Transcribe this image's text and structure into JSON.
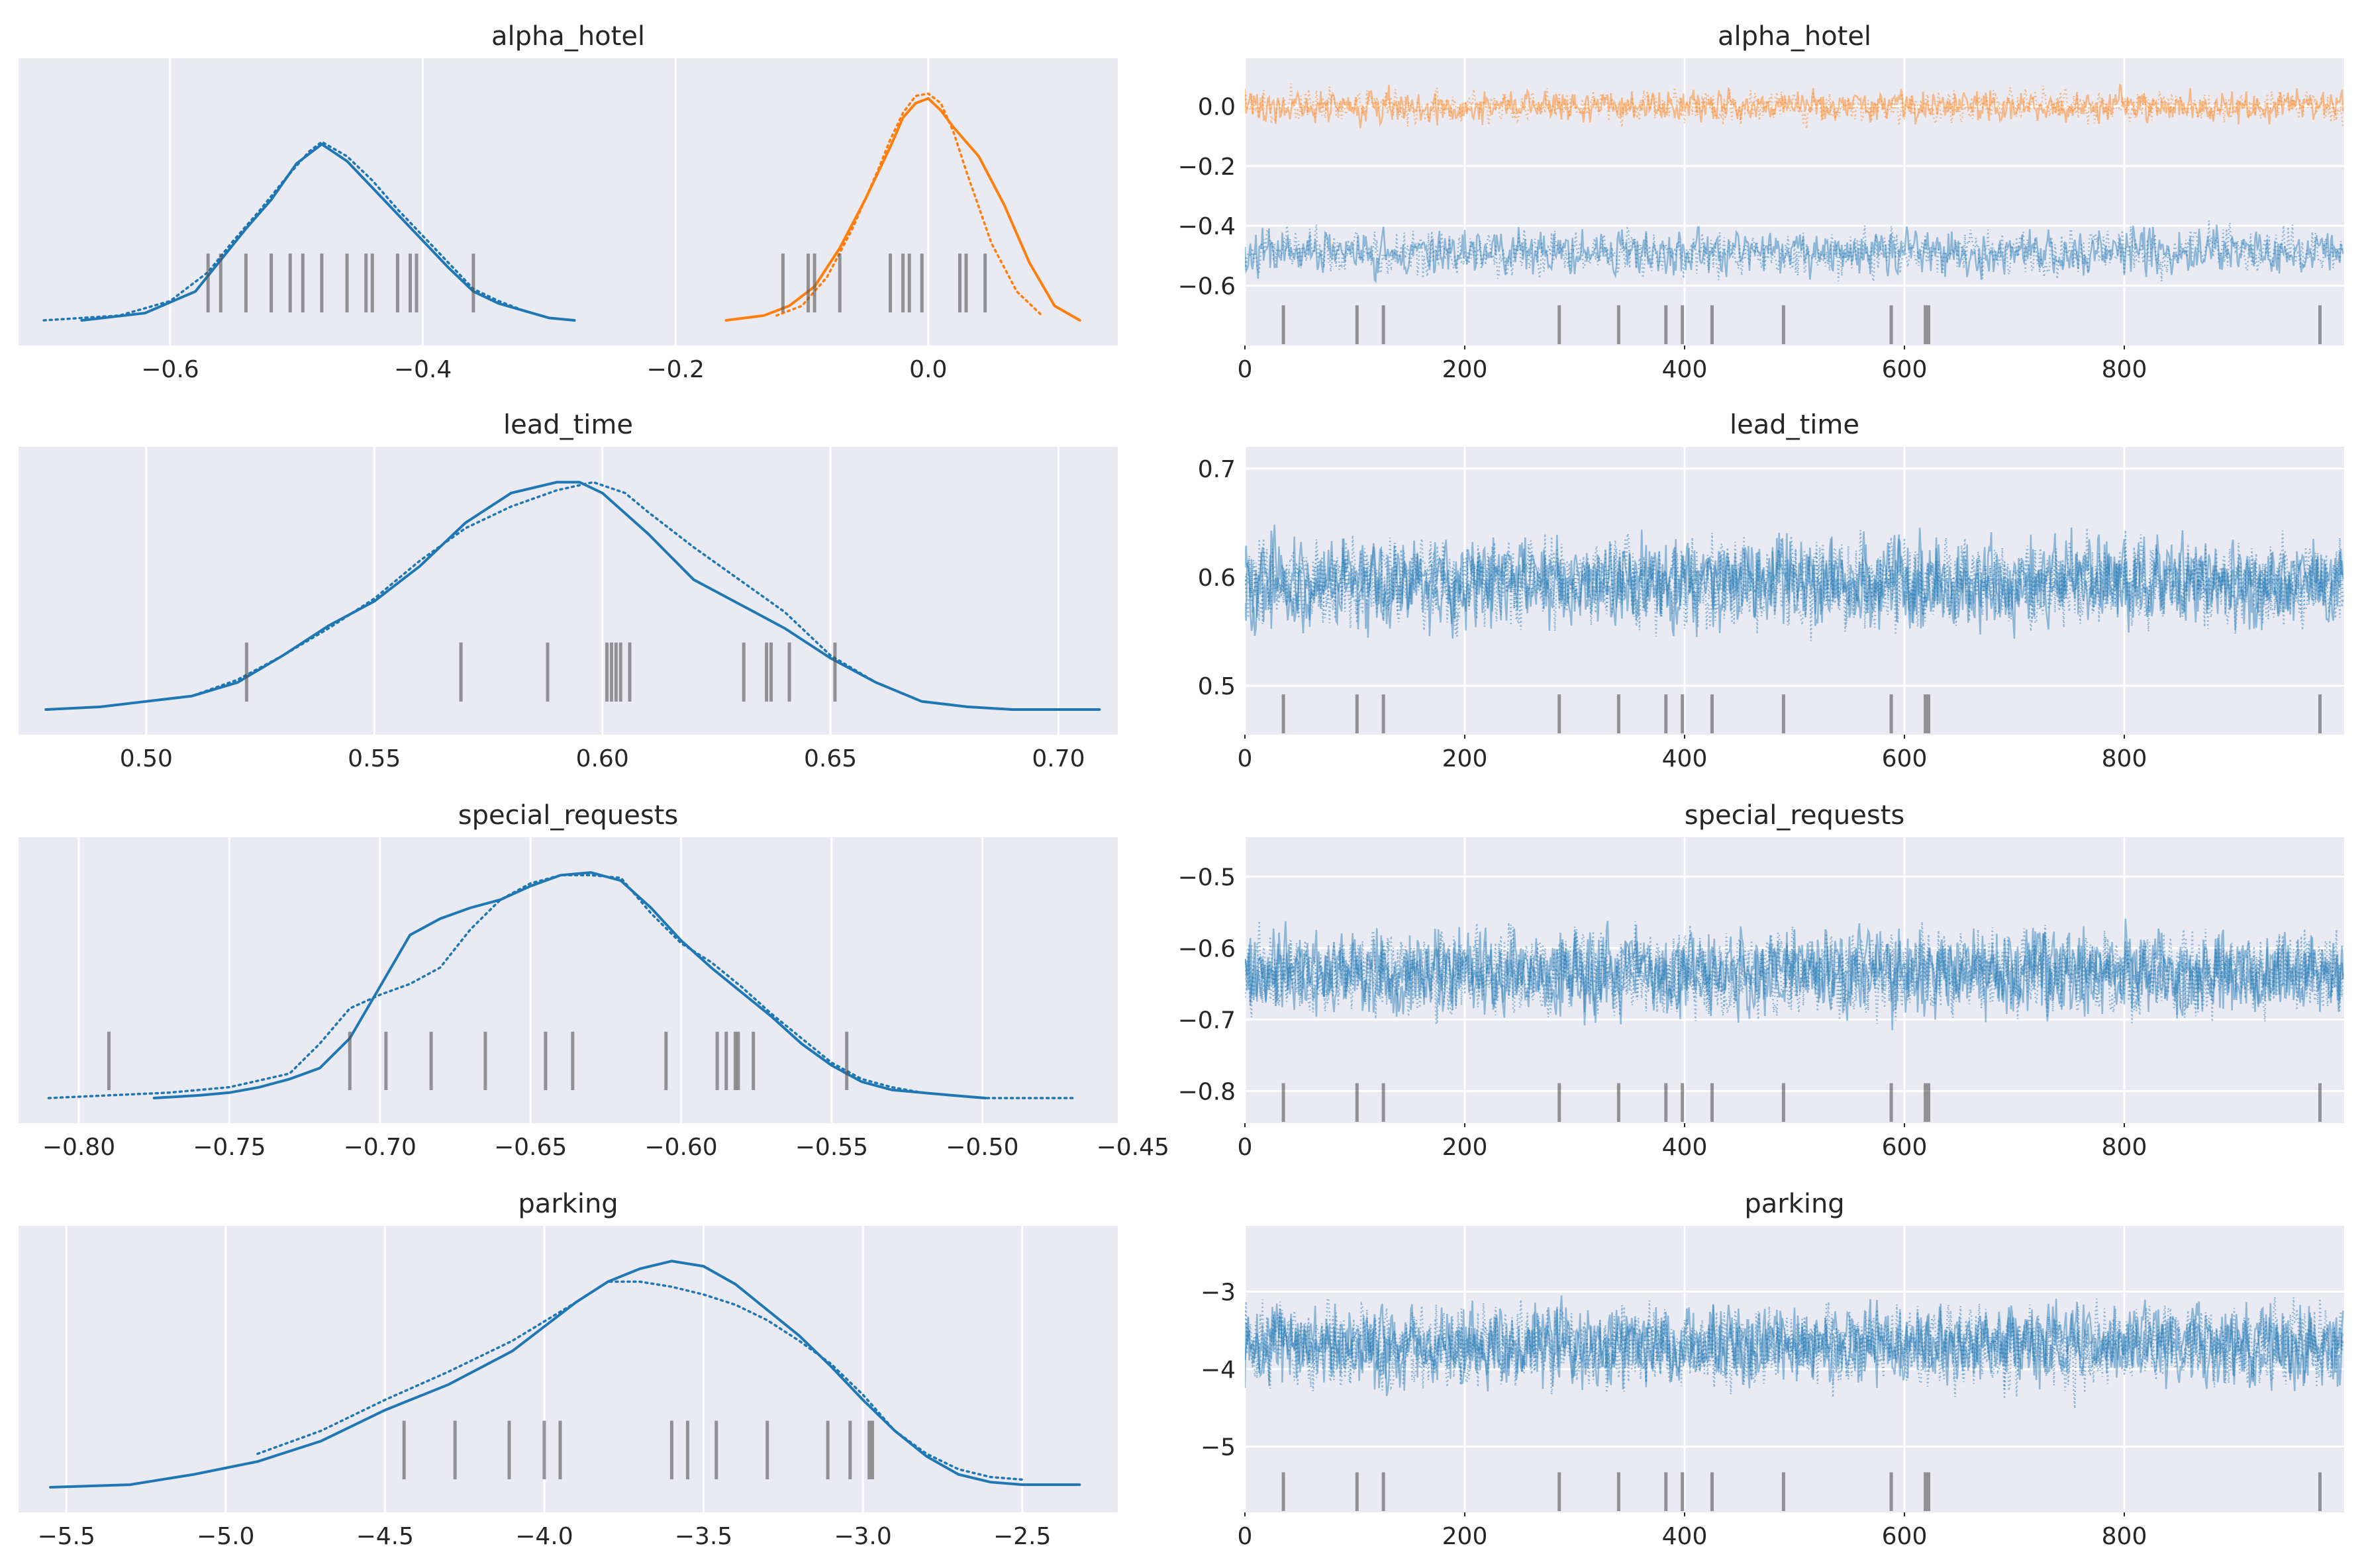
{
  "colors": {
    "chain0": "#1f77b4",
    "chain1": "#ff7f0e",
    "panel_bg": "#eaeaf2",
    "grid": "#ffffff",
    "rug": "#555555"
  },
  "chart_data": [
    {
      "type": "line",
      "title": "alpha_hotel",
      "xlim": [
        -0.72,
        0.15
      ],
      "xticks": [
        -0.6,
        -0.4,
        -0.2,
        0.0
      ],
      "xtick_labels": [
        "−0.6",
        "−0.4",
        "−0.2",
        "0.0"
      ],
      "grid": true,
      "series": [
        {
          "color": "#1f77b4",
          "dash": false,
          "x": [
            -0.67,
            -0.62,
            -0.58,
            -0.56,
            -0.54,
            -0.52,
            -0.5,
            -0.48,
            -0.46,
            -0.44,
            -0.42,
            -0.4,
            -0.38,
            -0.36,
            -0.34,
            -0.32,
            -0.3,
            -0.28
          ],
          "density": [
            0.0,
            0.03,
            0.12,
            0.25,
            0.38,
            0.5,
            0.65,
            0.73,
            0.66,
            0.55,
            0.44,
            0.33,
            0.22,
            0.12,
            0.07,
            0.04,
            0.01,
            0.0
          ]
        },
        {
          "color": "#1f77b4",
          "dash": true,
          "x": [
            -0.7,
            -0.64,
            -0.6,
            -0.57,
            -0.55,
            -0.53,
            -0.51,
            -0.49,
            -0.48,
            -0.46,
            -0.44,
            -0.42,
            -0.4,
            -0.38,
            -0.36,
            -0.34,
            -0.32,
            -0.3
          ],
          "density": [
            0.0,
            0.02,
            0.08,
            0.2,
            0.33,
            0.45,
            0.58,
            0.7,
            0.74,
            0.68,
            0.58,
            0.46,
            0.35,
            0.24,
            0.13,
            0.08,
            0.04,
            0.01
          ]
        },
        {
          "color": "#ff7f0e",
          "dash": false,
          "x": [
            -0.16,
            -0.13,
            -0.11,
            -0.09,
            -0.07,
            -0.05,
            -0.03,
            -0.02,
            -0.01,
            0.0,
            0.01,
            0.02,
            0.04,
            0.06,
            0.08,
            0.1,
            0.12
          ],
          "density": [
            0.0,
            0.02,
            0.06,
            0.14,
            0.3,
            0.5,
            0.72,
            0.84,
            0.9,
            0.92,
            0.87,
            0.8,
            0.68,
            0.48,
            0.24,
            0.06,
            0.0
          ]
        },
        {
          "color": "#ff7f0e",
          "dash": true,
          "x": [
            -0.12,
            -0.1,
            -0.08,
            -0.06,
            -0.04,
            -0.03,
            -0.02,
            -0.01,
            0.0,
            0.01,
            0.02,
            0.03,
            0.05,
            0.07,
            0.09
          ],
          "density": [
            0.02,
            0.06,
            0.18,
            0.38,
            0.62,
            0.75,
            0.86,
            0.93,
            0.94,
            0.9,
            0.78,
            0.62,
            0.32,
            0.12,
            0.02
          ]
        }
      ],
      "rug": [
        -0.57,
        -0.56,
        -0.54,
        -0.52,
        -0.505,
        -0.495,
        -0.48,
        -0.46,
        -0.445,
        -0.44,
        -0.42,
        -0.41,
        -0.405,
        -0.36,
        -0.115,
        -0.095,
        -0.09,
        -0.07,
        -0.03,
        -0.02,
        -0.015,
        -0.005,
        0.025,
        0.03,
        0.045
      ]
    },
    {
      "type": "line",
      "title": "alpha_hotel",
      "xlim": [
        0,
        1000
      ],
      "ylim": [
        -0.8,
        0.16
      ],
      "xticks": [
        0,
        200,
        400,
        600,
        800
      ],
      "xtick_labels": [
        "0",
        "200",
        "400",
        "600",
        "800"
      ],
      "yticks": [
        0.0,
        -0.2,
        -0.4,
        -0.6
      ],
      "ytick_labels": [
        "0.0",
        "−0.2",
        "−0.4",
        "−0.6"
      ],
      "grid": true,
      "series": [
        {
          "color": "#ff7f0e",
          "center": 0.0,
          "spread": 0.045
        },
        {
          "color": "#1f77b4",
          "center": -0.49,
          "spread": 0.065
        }
      ],
      "divergence_iterations": [
        35,
        102,
        126,
        286,
        340,
        383,
        398,
        425,
        490,
        588,
        619,
        622,
        978
      ]
    },
    {
      "type": "line",
      "title": "lead_time",
      "xlim": [
        0.472,
        0.713
      ],
      "xticks": [
        0.5,
        0.55,
        0.6,
        0.65,
        0.7
      ],
      "xtick_labels": [
        "0.50",
        "0.55",
        "0.60",
        "0.65",
        "0.70"
      ],
      "grid": true,
      "series": [
        {
          "color": "#1f77b4",
          "dash": false,
          "x": [
            0.478,
            0.49,
            0.5,
            0.51,
            0.52,
            0.53,
            0.54,
            0.55,
            0.56,
            0.57,
            0.58,
            0.59,
            0.595,
            0.6,
            0.61,
            0.62,
            0.63,
            0.64,
            0.65,
            0.66,
            0.67,
            0.68,
            0.69,
            0.709
          ],
          "density": [
            0.0,
            0.01,
            0.03,
            0.05,
            0.1,
            0.2,
            0.31,
            0.4,
            0.53,
            0.69,
            0.8,
            0.84,
            0.84,
            0.8,
            0.65,
            0.48,
            0.39,
            0.3,
            0.19,
            0.1,
            0.03,
            0.01,
            0.0,
            0.0
          ]
        },
        {
          "color": "#1f77b4",
          "dash": true,
          "x": [
            0.478,
            0.49,
            0.5,
            0.51,
            0.52,
            0.53,
            0.54,
            0.55,
            0.56,
            0.57,
            0.58,
            0.59,
            0.598,
            0.605,
            0.61,
            0.62,
            0.63,
            0.64,
            0.65,
            0.66,
            0.67,
            0.68,
            0.69,
            0.709
          ],
          "density": [
            0.0,
            0.01,
            0.03,
            0.05,
            0.11,
            0.2,
            0.3,
            0.41,
            0.55,
            0.67,
            0.75,
            0.81,
            0.84,
            0.8,
            0.73,
            0.6,
            0.48,
            0.36,
            0.2,
            0.1,
            0.03,
            0.01,
            0.0,
            0.0
          ]
        }
      ],
      "rug": [
        0.522,
        0.569,
        0.588,
        0.601,
        0.602,
        0.603,
        0.604,
        0.606,
        0.631,
        0.636,
        0.637,
        0.641,
        0.651
      ]
    },
    {
      "type": "line",
      "title": "lead_time",
      "xlim": [
        0,
        1000
      ],
      "ylim": [
        0.455,
        0.72
      ],
      "xticks": [
        0,
        200,
        400,
        600,
        800
      ],
      "xtick_labels": [
        "0",
        "200",
        "400",
        "600",
        "800"
      ],
      "yticks": [
        0.7,
        0.6,
        0.5
      ],
      "ytick_labels": [
        "0.7",
        "0.6",
        "0.5"
      ],
      "grid": true,
      "series": [
        {
          "color": "#1f77b4",
          "center": 0.595,
          "spread": 0.033
        },
        {
          "color": "#1f77b4",
          "center": 0.595,
          "spread": 0.033
        }
      ],
      "divergence_iterations": [
        35,
        102,
        126,
        286,
        340,
        383,
        398,
        425,
        490,
        588,
        619,
        622,
        978
      ]
    },
    {
      "type": "line",
      "title": "special_requests",
      "xlim": [
        -0.82,
        -0.455
      ],
      "xticks": [
        -0.8,
        -0.75,
        -0.7,
        -0.65,
        -0.6,
        -0.55,
        -0.5,
        -0.45
      ],
      "xtick_labels": [
        "−0.80",
        "−0.75",
        "−0.70",
        "−0.65",
        "−0.60",
        "−0.55",
        "−0.50",
        "−0.45"
      ],
      "grid": true,
      "series": [
        {
          "color": "#1f77b4",
          "dash": false,
          "x": [
            -0.775,
            -0.76,
            -0.75,
            -0.74,
            -0.73,
            -0.72,
            -0.71,
            -0.7,
            -0.69,
            -0.68,
            -0.67,
            -0.66,
            -0.65,
            -0.64,
            -0.63,
            -0.62,
            -0.61,
            -0.6,
            -0.59,
            -0.58,
            -0.57,
            -0.56,
            -0.55,
            -0.54,
            -0.53,
            -0.52,
            -0.51,
            -0.499
          ],
          "density": [
            0.0,
            0.01,
            0.02,
            0.04,
            0.07,
            0.11,
            0.22,
            0.41,
            0.6,
            0.66,
            0.7,
            0.73,
            0.78,
            0.82,
            0.83,
            0.8,
            0.7,
            0.58,
            0.48,
            0.39,
            0.3,
            0.2,
            0.12,
            0.06,
            0.03,
            0.02,
            0.01,
            0.0
          ]
        },
        {
          "color": "#1f77b4",
          "dash": true,
          "x": [
            -0.81,
            -0.79,
            -0.77,
            -0.75,
            -0.73,
            -0.72,
            -0.71,
            -0.7,
            -0.69,
            -0.68,
            -0.67,
            -0.66,
            -0.65,
            -0.64,
            -0.63,
            -0.62,
            -0.61,
            -0.6,
            -0.59,
            -0.58,
            -0.57,
            -0.56,
            -0.55,
            -0.54,
            -0.53,
            -0.52,
            -0.5,
            -0.47
          ],
          "density": [
            0.0,
            0.01,
            0.02,
            0.04,
            0.09,
            0.2,
            0.33,
            0.38,
            0.42,
            0.48,
            0.62,
            0.73,
            0.79,
            0.82,
            0.82,
            0.81,
            0.68,
            0.57,
            0.5,
            0.41,
            0.31,
            0.22,
            0.13,
            0.07,
            0.04,
            0.02,
            0.0,
            0.0
          ]
        }
      ],
      "rug": [
        -0.79,
        -0.71,
        -0.698,
        -0.683,
        -0.665,
        -0.645,
        -0.636,
        -0.605,
        -0.588,
        -0.585,
        -0.582,
        -0.581,
        -0.576,
        -0.545
      ]
    },
    {
      "type": "line",
      "title": "special_requests",
      "xlim": [
        0,
        1000
      ],
      "ylim": [
        -0.845,
        -0.445
      ],
      "xticks": [
        0,
        200,
        400,
        600,
        800
      ],
      "xtick_labels": [
        "0",
        "200",
        "400",
        "600",
        "800"
      ],
      "yticks": [
        -0.5,
        -0.6,
        -0.7,
        -0.8
      ],
      "ytick_labels": [
        "−0.5",
        "−0.6",
        "−0.7",
        "−0.8"
      ],
      "grid": true,
      "series": [
        {
          "color": "#1f77b4",
          "center": -0.635,
          "spread": 0.048
        },
        {
          "color": "#1f77b4",
          "center": -0.635,
          "spread": 0.048
        }
      ],
      "divergence_iterations": [
        35,
        102,
        126,
        286,
        340,
        383,
        398,
        425,
        490,
        588,
        619,
        622,
        978
      ]
    },
    {
      "type": "line",
      "title": "parking",
      "xlim": [
        -5.65,
        -2.2
      ],
      "xticks": [
        -5.5,
        -5.0,
        -4.5,
        -4.0,
        -3.5,
        -3.0,
        -2.5
      ],
      "xtick_labels": [
        "−5.5",
        "−5.0",
        "−4.5",
        "−4.0",
        "−3.5",
        "−3.0",
        "−2.5"
      ],
      "grid": true,
      "series": [
        {
          "color": "#1f77b4",
          "dash": false,
          "x": [
            -5.55,
            -5.3,
            -5.1,
            -4.9,
            -4.7,
            -4.5,
            -4.3,
            -4.1,
            -3.9,
            -3.8,
            -3.7,
            -3.6,
            -3.5,
            -3.4,
            -3.3,
            -3.2,
            -3.1,
            -3.0,
            -2.9,
            -2.8,
            -2.7,
            -2.6,
            -2.5,
            -2.32
          ],
          "density": [
            0.0,
            0.01,
            0.05,
            0.1,
            0.18,
            0.3,
            0.4,
            0.53,
            0.72,
            0.8,
            0.85,
            0.88,
            0.86,
            0.79,
            0.69,
            0.59,
            0.47,
            0.34,
            0.22,
            0.12,
            0.05,
            0.02,
            0.01,
            0.01
          ]
        },
        {
          "color": "#1f77b4",
          "dash": true,
          "x": [
            -4.9,
            -4.7,
            -4.5,
            -4.3,
            -4.1,
            -3.9,
            -3.8,
            -3.7,
            -3.6,
            -3.5,
            -3.4,
            -3.3,
            -3.2,
            -3.1,
            -3.0,
            -2.9,
            -2.8,
            -2.7,
            -2.6,
            -2.5
          ],
          "density": [
            0.13,
            0.22,
            0.34,
            0.45,
            0.57,
            0.72,
            0.8,
            0.8,
            0.78,
            0.75,
            0.71,
            0.65,
            0.57,
            0.48,
            0.36,
            0.22,
            0.13,
            0.07,
            0.04,
            0.03
          ]
        }
      ],
      "rug": [
        -4.44,
        -4.28,
        -4.11,
        -4.0,
        -3.95,
        -3.6,
        -3.55,
        -3.46,
        -3.3,
        -3.11,
        -3.04,
        -2.98,
        -2.97
      ]
    },
    {
      "type": "line",
      "title": "parking",
      "xlim": [
        0,
        1000
      ],
      "ylim": [
        -5.85,
        -2.15
      ],
      "xticks": [
        0,
        200,
        400,
        600,
        800
      ],
      "xtick_labels": [
        "0",
        "200",
        "400",
        "600",
        "800"
      ],
      "yticks": [
        -3,
        -4,
        -5
      ],
      "ytick_labels": [
        "−3",
        "−4",
        "−5"
      ],
      "grid": true,
      "series": [
        {
          "color": "#1f77b4",
          "center": -3.7,
          "spread": 0.42
        },
        {
          "color": "#1f77b4",
          "center": -3.7,
          "spread": 0.42
        }
      ],
      "divergence_iterations": [
        35,
        102,
        126,
        286,
        340,
        383,
        398,
        425,
        490,
        588,
        619,
        622,
        978
      ]
    }
  ]
}
